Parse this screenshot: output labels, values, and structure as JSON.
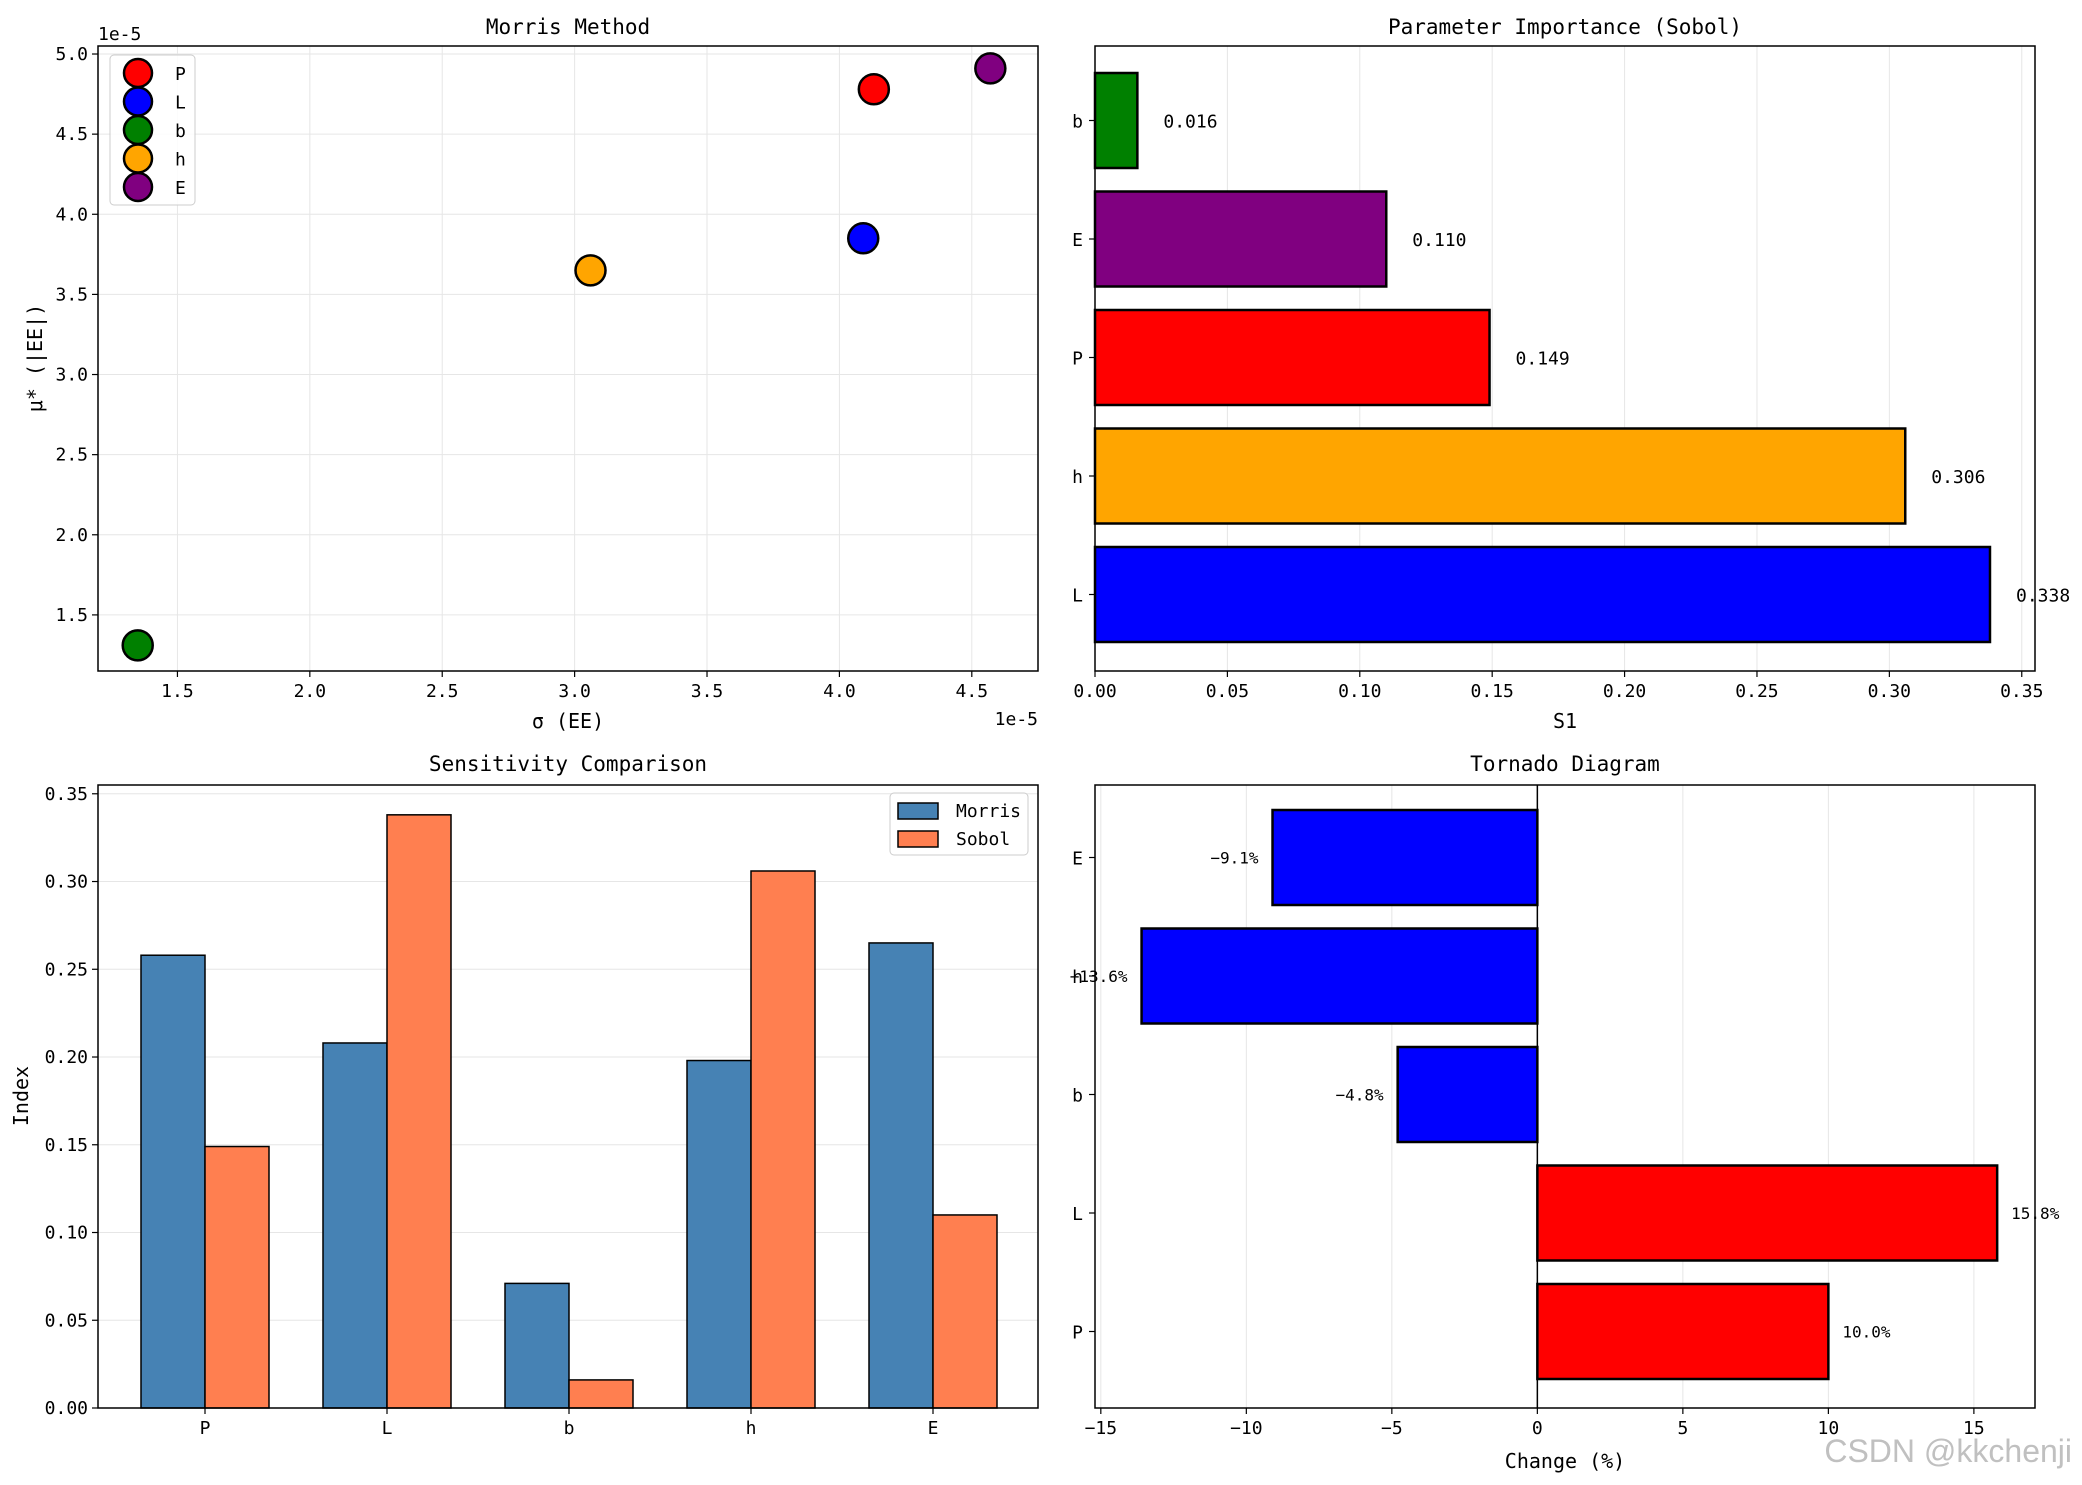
{
  "chart_data": [
    {
      "type": "scatter",
      "title": "Morris Method",
      "xlabel": "σ (EE)",
      "ylabel": "μ* (|EE|)",
      "x_offset_text": "1e-5",
      "y_offset_text": "1e-5",
      "xlim": [
        1.2,
        4.75
      ],
      "ylim": [
        1.15,
        5.05
      ],
      "xticks": [
        1.5,
        2.0,
        2.5,
        3.0,
        3.5,
        4.0,
        4.5
      ],
      "xtick_labels": [
        "1.5",
        "2.0",
        "2.5",
        "3.0",
        "3.5",
        "4.0",
        "4.5"
      ],
      "yticks": [
        1.5,
        2.0,
        2.5,
        3.0,
        3.5,
        4.0,
        4.5,
        5.0
      ],
      "ytick_labels": [
        "1.5",
        "2.0",
        "2.5",
        "3.0",
        "3.5",
        "4.0",
        "4.5",
        "5.0"
      ],
      "legend": "top-left",
      "points": [
        {
          "name": "P",
          "x": 4.13,
          "y": 4.78,
          "color": "#ff0000"
        },
        {
          "name": "L",
          "x": 4.09,
          "y": 3.85,
          "color": "#0000ff"
        },
        {
          "name": "b",
          "x": 1.35,
          "y": 1.31,
          "color": "#008000"
        },
        {
          "name": "h",
          "x": 3.06,
          "y": 3.65,
          "color": "#ffa500"
        },
        {
          "name": "E",
          "x": 4.57,
          "y": 4.91,
          "color": "#800080"
        }
      ]
    },
    {
      "type": "bar",
      "orientation": "horizontal",
      "title": "Parameter Importance (Sobol)",
      "xlabel": "S1",
      "xlim": [
        0,
        0.355
      ],
      "xticks": [
        0,
        0.05,
        0.1,
        0.15,
        0.2,
        0.25,
        0.3,
        0.35
      ],
      "xtick_labels": [
        "0.00",
        "0.05",
        "0.10",
        "0.15",
        "0.20",
        "0.25",
        "0.30",
        "0.35"
      ],
      "categories": [
        "L",
        "h",
        "P",
        "E",
        "b"
      ],
      "values": [
        0.338,
        0.306,
        0.149,
        0.11,
        0.016
      ],
      "value_labels": [
        "0.338",
        "0.306",
        "0.149",
        "0.110",
        "0.016"
      ],
      "colors": [
        "#0000ff",
        "#ffa500",
        "#ff0000",
        "#800080",
        "#008000"
      ]
    },
    {
      "type": "bar",
      "title": "Sensitivity Comparison",
      "xlabel": "",
      "ylabel": "Index",
      "ylim": [
        0,
        0.355
      ],
      "yticks": [
        0,
        0.05,
        0.1,
        0.15,
        0.2,
        0.25,
        0.3,
        0.35
      ],
      "ytick_labels": [
        "0.00",
        "0.05",
        "0.10",
        "0.15",
        "0.20",
        "0.25",
        "0.30",
        "0.35"
      ],
      "categories": [
        "P",
        "L",
        "b",
        "h",
        "E"
      ],
      "legend": "top-right",
      "series": [
        {
          "name": "Morris",
          "color": "#4682b4",
          "values": [
            0.258,
            0.208,
            0.071,
            0.198,
            0.265
          ]
        },
        {
          "name": "Sobol",
          "color": "#ff7f50",
          "values": [
            0.149,
            0.338,
            0.016,
            0.306,
            0.11
          ]
        }
      ]
    },
    {
      "type": "bar",
      "orientation": "horizontal",
      "title": "Tornado Diagram",
      "xlabel": "Change (%)",
      "xlim": [
        -15.2,
        17.1
      ],
      "xticks": [
        -15,
        -10,
        -5,
        0,
        5,
        10,
        15
      ],
      "xtick_labels": [
        "−15",
        "−10",
        "−5",
        "0",
        "5",
        "10",
        "15"
      ],
      "categories": [
        "P",
        "L",
        "b",
        "h",
        "E"
      ],
      "values": [
        10.0,
        15.8,
        -4.8,
        -13.6,
        -9.1
      ],
      "value_labels": [
        "10.0%",
        "15.8%",
        "−4.8%",
        "−13.6%",
        "−9.1%"
      ],
      "positive_color": "#ff0000",
      "negative_color": "#0000ff"
    }
  ],
  "watermark": "CSDN @kkchenji"
}
